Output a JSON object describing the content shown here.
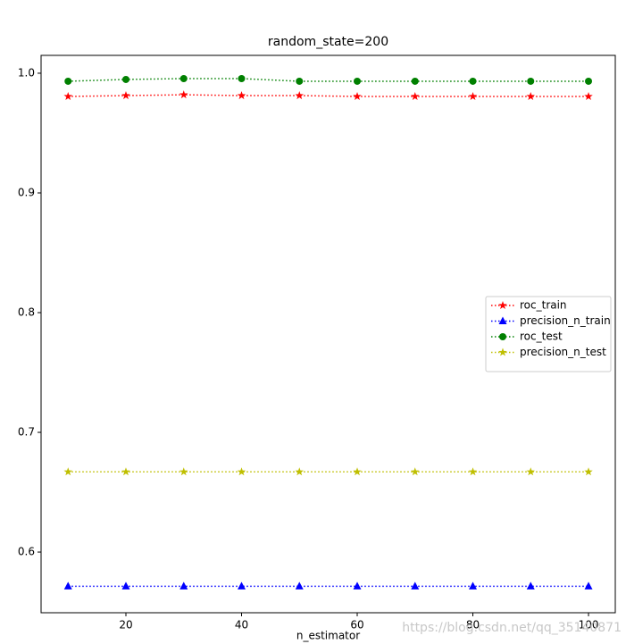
{
  "chart_data": {
    "type": "line",
    "title": "random_state=200",
    "x_label": "n_estimator",
    "x": [
      10,
      20,
      30,
      40,
      50,
      60,
      70,
      80,
      90,
      100
    ],
    "series": [
      {
        "name": "roc_train",
        "color": "#ff0000",
        "marker": "*",
        "values": [
          0.9806,
          0.9813,
          0.982,
          0.9813,
          0.9813,
          0.9806,
          0.9806,
          0.9806,
          0.9806,
          0.9806
        ]
      },
      {
        "name": "precision_n_train",
        "color": "#0000ff",
        "marker": "^",
        "values": [
          0.5714,
          0.5714,
          0.5714,
          0.5714,
          0.5714,
          0.5714,
          0.5714,
          0.5714,
          0.5714,
          0.5714
        ]
      },
      {
        "name": "roc_test",
        "color": "#008000",
        "marker": "o",
        "values": [
          0.9933,
          0.9948,
          0.9955,
          0.9955,
          0.9933,
          0.9933,
          0.9933,
          0.9933,
          0.9933,
          0.9933
        ]
      },
      {
        "name": "precision_n_test",
        "color": "#bfbf00",
        "marker": "*",
        "values": [
          0.667,
          0.667,
          0.667,
          0.667,
          0.667,
          0.667,
          0.667,
          0.667,
          0.667,
          0.667
        ]
      }
    ],
    "xlim": [
      5.33,
      104.63
    ],
    "ylim": [
      0.5493,
      1.0149
    ],
    "xticks": [
      20,
      40,
      60,
      80,
      100
    ],
    "yticks": [
      0.6,
      0.7,
      0.8,
      0.9,
      {
        "value": 1,
        "label": "1.0"
      }
    ],
    "linestyle": "dotted",
    "legend": "center right",
    "watermark": "https://blog.csdn.net/qq_35140871"
  }
}
